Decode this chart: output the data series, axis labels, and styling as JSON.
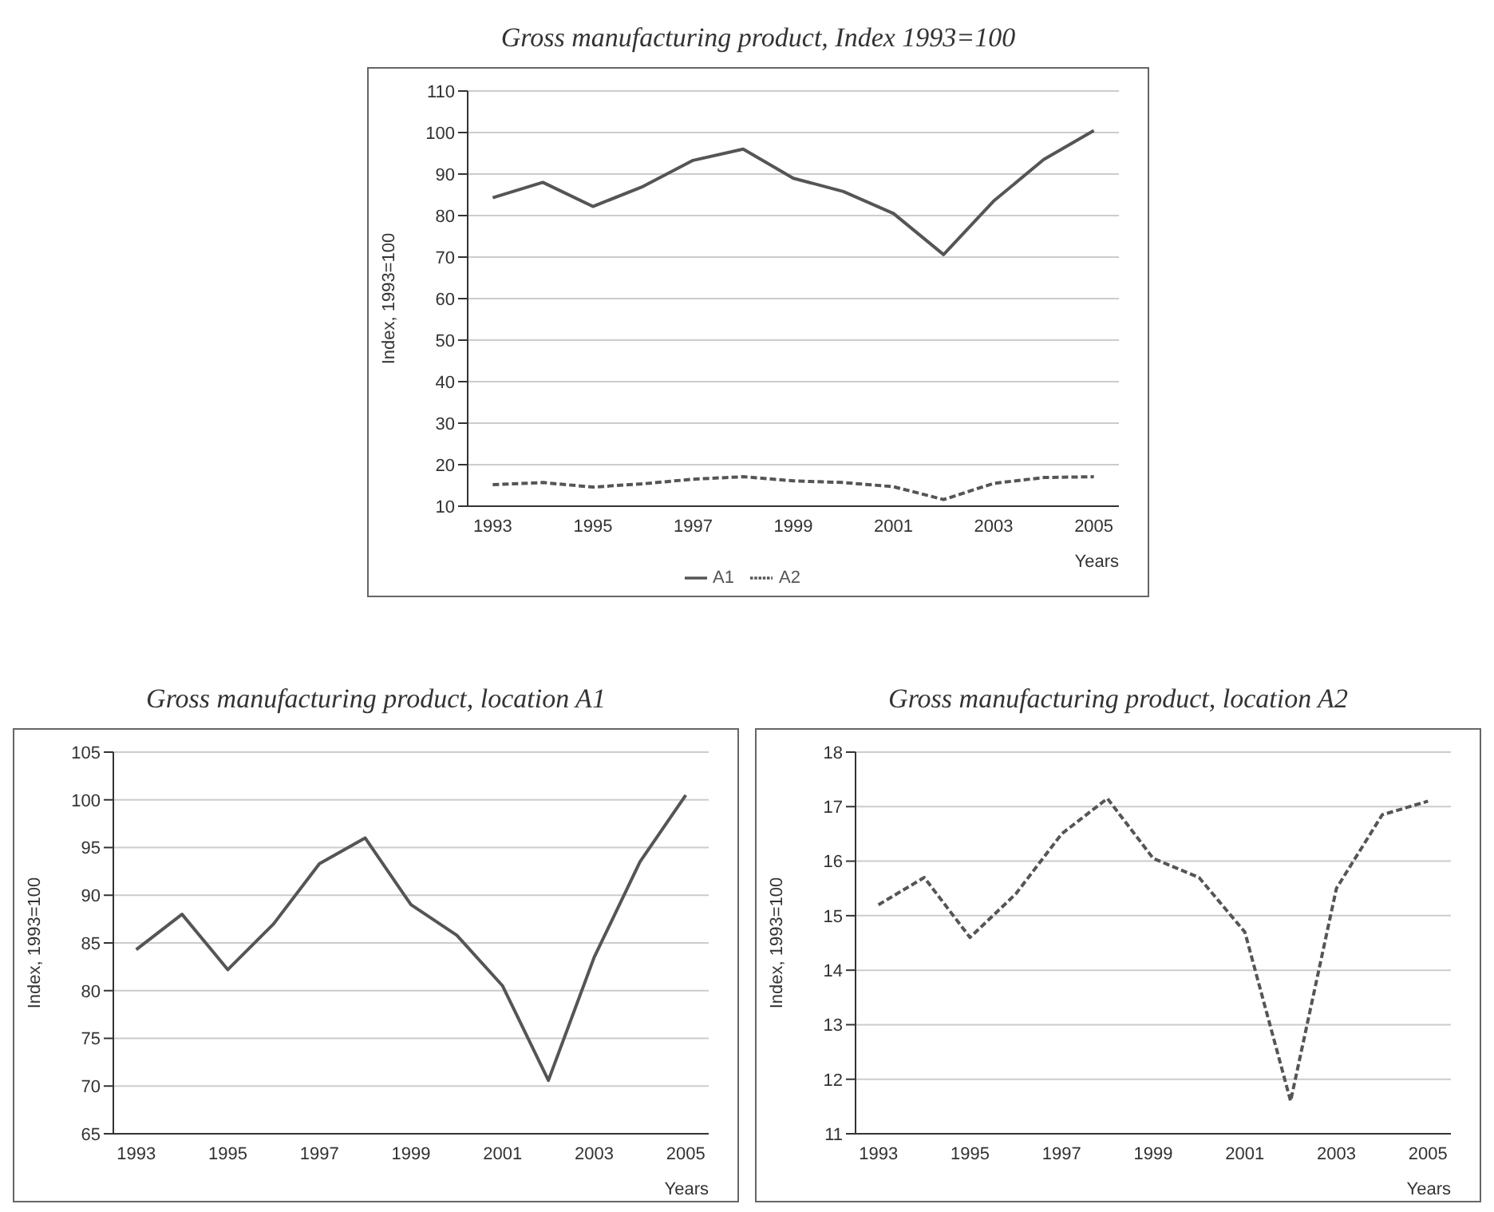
{
  "chart_data": [
    {
      "type": "line",
      "title": "Gross manufacturing product, Index 1993=100",
      "xlabel": "Years",
      "ylabel": "Index, 1993=100",
      "x": [
        1993,
        1994,
        1995,
        1996,
        1997,
        1998,
        1999,
        2000,
        2001,
        2002,
        2003,
        2004,
        2005
      ],
      "xlim": [
        1992.5,
        2005.5
      ],
      "xticks": [
        1993,
        1995,
        1997,
        1999,
        2001,
        2003,
        2005
      ],
      "ylim": [
        10,
        110
      ],
      "yticks": [
        10,
        20,
        30,
        40,
        50,
        60,
        70,
        80,
        90,
        100,
        110
      ],
      "grid": "y",
      "legend": "bottom",
      "marker": "none",
      "series": [
        {
          "name": "A1",
          "color": "#555555",
          "line_style": "solid",
          "values": [
            84.3,
            88,
            82.2,
            87,
            93.3,
            96,
            89,
            85.8,
            80.5,
            70.6,
            83.5,
            93.5,
            100.5
          ]
        },
        {
          "name": "A2",
          "color": "#555555",
          "line_style": "dashed",
          "values": [
            15.2,
            15.7,
            14.6,
            15.4,
            16.5,
            17.1,
            16.1,
            15.7,
            14.7,
            11.6,
            15.5,
            16.9,
            17.1
          ]
        }
      ]
    },
    {
      "type": "line",
      "title": "Gross manufacturing product, location A1",
      "xlabel": "Years",
      "ylabel": "Index, 1993=100",
      "x": [
        1993,
        1994,
        1995,
        1996,
        1997,
        1998,
        1999,
        2000,
        2001,
        2002,
        2003,
        2004,
        2005
      ],
      "xlim": [
        1992.5,
        2005.5
      ],
      "xticks": [
        1993,
        1995,
        1997,
        1999,
        2001,
        2003,
        2005
      ],
      "ylim": [
        65,
        105
      ],
      "yticks": [
        65,
        70,
        75,
        80,
        85,
        90,
        95,
        100,
        105
      ],
      "grid": "y",
      "marker": "none",
      "series": [
        {
          "color": "#555555",
          "line_style": "solid",
          "values": [
            84.3,
            88,
            82.2,
            87,
            93.3,
            96,
            89,
            85.8,
            80.5,
            70.6,
            83.5,
            93.5,
            100.5
          ]
        }
      ]
    },
    {
      "type": "line",
      "title": "Gross manufacturing product, location A2",
      "xlabel": "Years",
      "ylabel": "Index, 1993=100",
      "x": [
        1993,
        1994,
        1995,
        1996,
        1997,
        1998,
        1999,
        2000,
        2001,
        2002,
        2003,
        2004,
        2005
      ],
      "xlim": [
        1992.5,
        2005.5
      ],
      "xticks": [
        1993,
        1995,
        1997,
        1999,
        2001,
        2003,
        2005
      ],
      "ylim": [
        11,
        18
      ],
      "yticks": [
        11,
        12,
        13,
        14,
        15,
        16,
        17,
        18
      ],
      "grid": "y",
      "marker": "none",
      "series": [
        {
          "color": "#555555",
          "line_style": "dashed",
          "values": [
            15.2,
            15.7,
            14.6,
            15.4,
            16.5,
            17.15,
            16.05,
            15.7,
            14.7,
            11.6,
            15.5,
            16.85,
            17.1
          ]
        }
      ]
    }
  ]
}
